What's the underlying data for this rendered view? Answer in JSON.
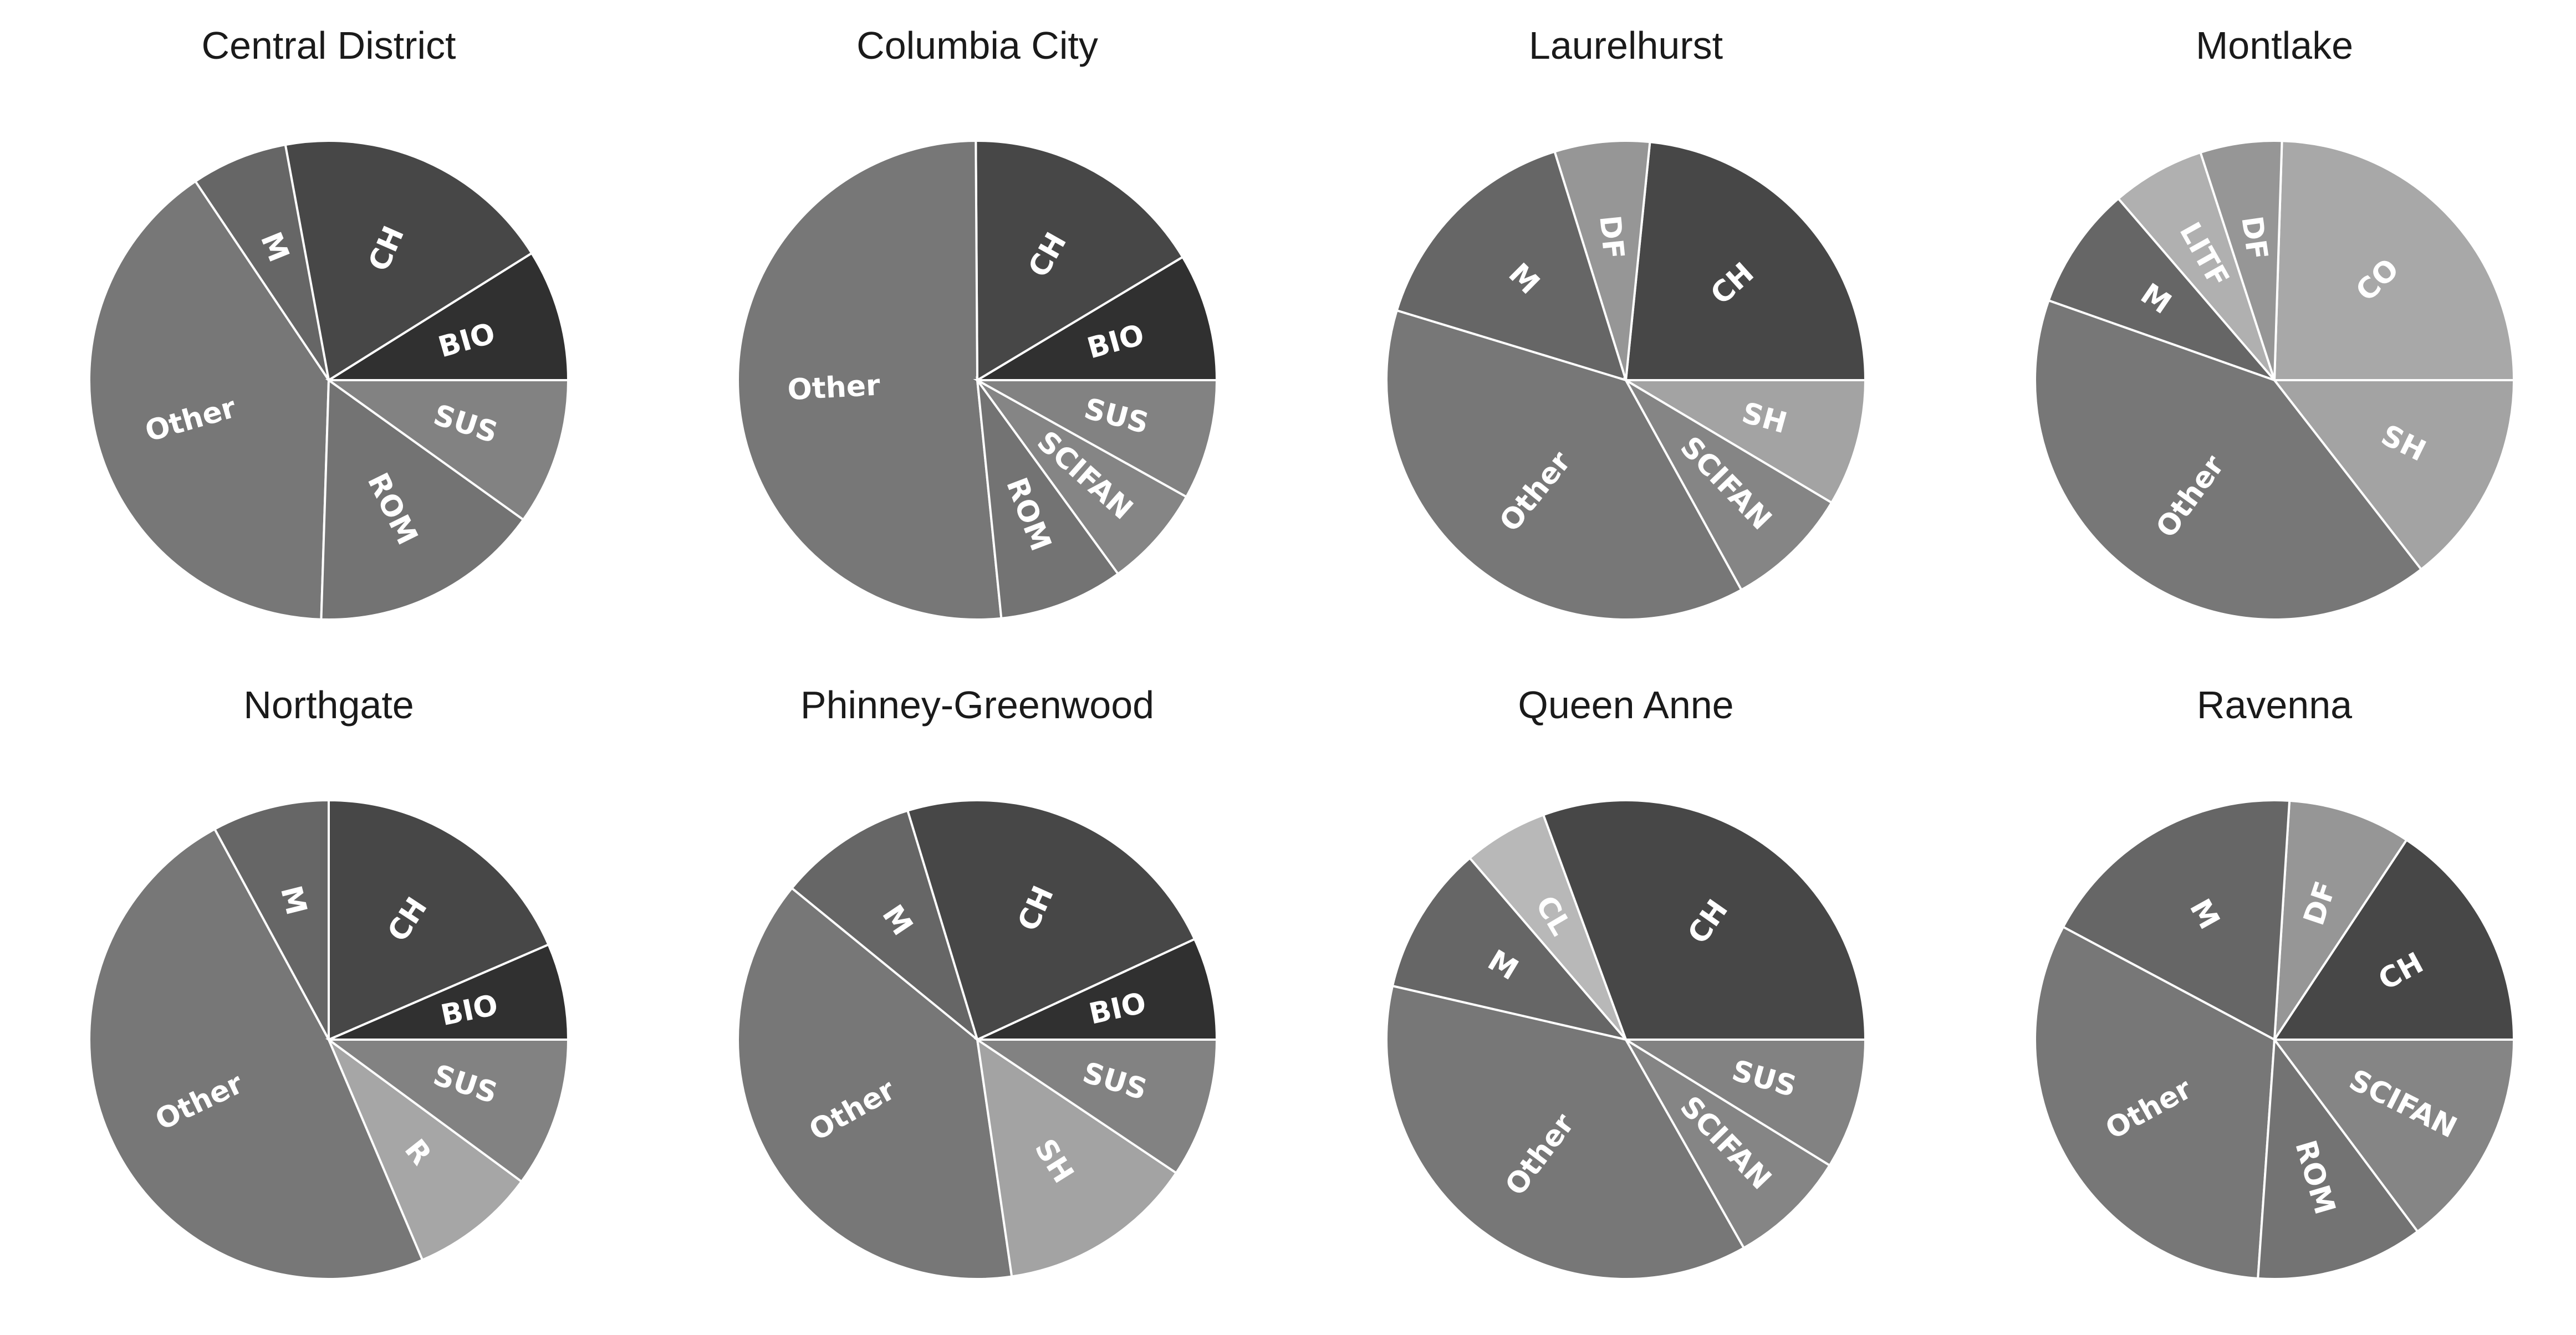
{
  "colors": {
    "Other": "#777777",
    "M": "#666666",
    "CH": "#474747",
    "BIO": "#303030",
    "SUS": "#828282",
    "ROM": "#737373",
    "SCIFAN": "#858585",
    "DF": "#969696",
    "SH": "#a3a3a3",
    "LITF": "#b0b0b0",
    "CO": "#a8a8a8",
    "R": "#a6a6a6",
    "CL": "#b8b8b8"
  },
  "chart_data": [
    {
      "type": "pie",
      "title": "Central District",
      "labels": [
        "BIO",
        "CH",
        "M",
        "Other",
        "ROM",
        "SUS"
      ],
      "values": [
        8.9,
        19.0,
        6.5,
        40.1,
        15.6,
        9.9
      ]
    },
    {
      "type": "pie",
      "title": "Columbia City",
      "labels": [
        "BIO",
        "CH",
        "Other",
        "ROM",
        "SCIFAN",
        "SUS"
      ],
      "values": [
        8.6,
        16.5,
        51.5,
        8.4,
        6.9,
        8.1
      ]
    },
    {
      "type": "pie",
      "title": "Laurelhurst",
      "labels": [
        "CH",
        "DF",
        "M",
        "Other",
        "SCIFAN",
        "SH"
      ],
      "values": [
        21.9,
        6.0,
        14.5,
        35.3,
        7.9,
        8.0
      ]
    },
    {
      "type": "pie",
      "title": "Montlake",
      "labels": [
        "CO",
        "DF",
        "LITF",
        "M",
        "Other",
        "SH"
      ],
      "values": [
        24.5,
        5.5,
        6.3,
        8.3,
        40.9,
        14.5
      ]
    },
    {
      "type": "pie",
      "title": "Northgate",
      "labels": [
        "BIO",
        "CH",
        "M",
        "Other",
        "R",
        "SUS"
      ],
      "values": [
        6.5,
        18.5,
        7.9,
        48.5,
        8.5,
        10.1
      ]
    },
    {
      "type": "pie",
      "title": "Phinney-Greenwood",
      "labels": [
        "BIO",
        "CH",
        "M",
        "Other",
        "SH",
        "SUS"
      ],
      "values": [
        6.9,
        22.8,
        9.4,
        38.2,
        13.3,
        9.4
      ]
    },
    {
      "type": "pie",
      "title": "Queen Anne",
      "labels": [
        "CH",
        "CL",
        "M",
        "Other",
        "SCIFAN",
        "SUS"
      ],
      "values": [
        30.6,
        5.7,
        10.1,
        36.8,
        8.0,
        8.8
      ]
    },
    {
      "type": "pie",
      "title": "Ravenna",
      "labels": [
        "CH",
        "DF",
        "M",
        "Other",
        "ROM",
        "SCIFAN"
      ],
      "values": [
        15.7,
        8.3,
        18.2,
        31.7,
        11.3,
        14.8
      ]
    }
  ]
}
